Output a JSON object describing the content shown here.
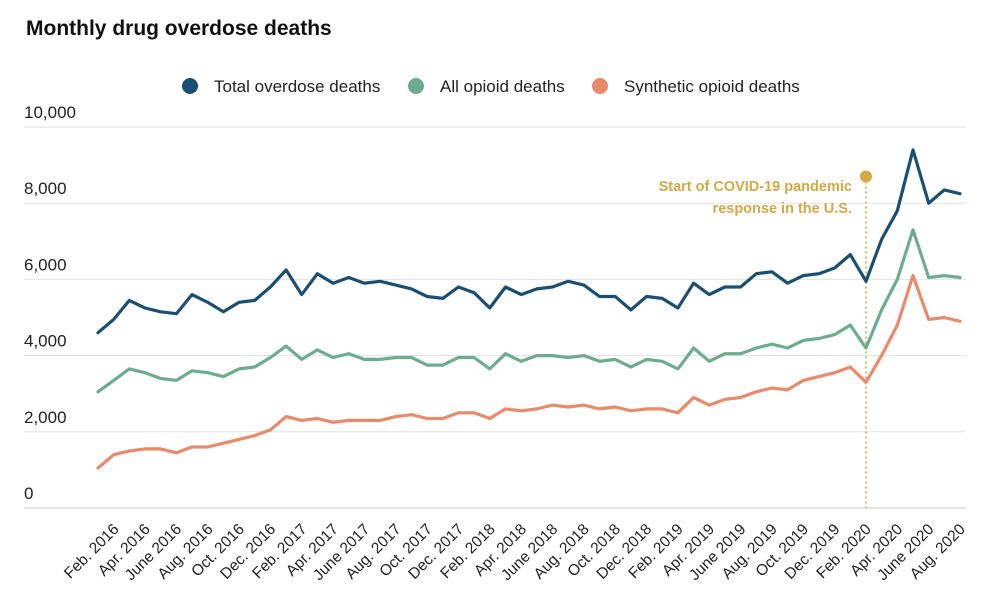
{
  "chart_data": {
    "type": "line",
    "title": "Monthly drug overdose deaths",
    "xlabel": "",
    "ylabel": "",
    "ylim": [
      0,
      10000
    ],
    "yticks": [
      0,
      2000,
      4000,
      6000,
      8000,
      10000
    ],
    "ytick_labels": [
      "0",
      "2,000",
      "4,000",
      "6,000",
      "8,000",
      "10,000"
    ],
    "grid": true,
    "legend_position": "top-center",
    "x": [
      "Jan. 2016",
      "Feb. 2016",
      "Mar. 2016",
      "Apr. 2016",
      "May 2016",
      "June 2016",
      "July 2016",
      "Aug. 2016",
      "Sep. 2016",
      "Oct. 2016",
      "Nov. 2016",
      "Dec. 2016",
      "Jan. 2017",
      "Feb. 2017",
      "Mar. 2017",
      "Apr. 2017",
      "May 2017",
      "June 2017",
      "July 2017",
      "Aug. 2017",
      "Sep. 2017",
      "Oct. 2017",
      "Nov. 2017",
      "Dec. 2017",
      "Jan. 2018",
      "Feb. 2018",
      "Mar. 2018",
      "Apr. 2018",
      "May 2018",
      "June 2018",
      "July 2018",
      "Aug. 2018",
      "Sep. 2018",
      "Oct. 2018",
      "Nov. 2018",
      "Dec. 2018",
      "Jan. 2019",
      "Feb. 2019",
      "Mar. 2019",
      "Apr. 2019",
      "May 2019",
      "June 2019",
      "July 2019",
      "Aug. 2019",
      "Sep. 2019",
      "Oct. 2019",
      "Nov. 2019",
      "Dec. 2019",
      "Jan. 2020",
      "Feb. 2020",
      "Mar. 2020",
      "Apr. 2020",
      "May 2020",
      "June 2020",
      "July 2020",
      "Aug. 2020"
    ],
    "tick_labels": [
      {
        "index": 1,
        "label": "Feb. 2016"
      },
      {
        "index": 3,
        "label": "Apr. 2016"
      },
      {
        "index": 5,
        "label": "June 2016"
      },
      {
        "index": 7,
        "label": "Aug. 2016"
      },
      {
        "index": 9,
        "label": "Oct. 2016"
      },
      {
        "index": 11,
        "label": "Dec. 2016"
      },
      {
        "index": 13,
        "label": "Feb. 2017"
      },
      {
        "index": 15,
        "label": "Apr. 2017"
      },
      {
        "index": 17,
        "label": "June 2017"
      },
      {
        "index": 19,
        "label": "Aug. 2017"
      },
      {
        "index": 21,
        "label": "Oct. 2017"
      },
      {
        "index": 23,
        "label": "Dec. 2017"
      },
      {
        "index": 25,
        "label": "Feb. 2018"
      },
      {
        "index": 27,
        "label": "Apr. 2018"
      },
      {
        "index": 29,
        "label": "June 2018"
      },
      {
        "index": 31,
        "label": "Aug. 2018"
      },
      {
        "index": 33,
        "label": "Oct. 2018"
      },
      {
        "index": 35,
        "label": "Dec. 2018"
      },
      {
        "index": 37,
        "label": "Feb. 2019"
      },
      {
        "index": 39,
        "label": "Apr. 2019"
      },
      {
        "index": 41,
        "label": "June 2019"
      },
      {
        "index": 43,
        "label": "Aug. 2019"
      },
      {
        "index": 45,
        "label": "Oct. 2019"
      },
      {
        "index": 47,
        "label": "Dec. 2019"
      },
      {
        "index": 49,
        "label": "Feb. 2020"
      },
      {
        "index": 51,
        "label": "Apr. 2020"
      },
      {
        "index": 53,
        "label": "June 2020"
      },
      {
        "index": 55,
        "label": "Aug. 2020"
      }
    ],
    "series": [
      {
        "name": "Total overdose deaths",
        "color": "#1b4f72",
        "values": [
          4600,
          4950,
          5450,
          5250,
          5150,
          5100,
          5600,
          5400,
          5150,
          5400,
          5450,
          5800,
          6250,
          5600,
          6150,
          5900,
          6050,
          5900,
          5950,
          5850,
          5750,
          5550,
          5500,
          5800,
          5650,
          5250,
          5800,
          5600,
          5750,
          5800,
          5950,
          5850,
          5550,
          5550,
          5200,
          5550,
          5500,
          5250,
          5900,
          5600,
          5800,
          5800,
          6150,
          6200,
          5900,
          6100,
          6150,
          6300,
          6650,
          5950,
          7050,
          7800,
          9400,
          8000,
          8350,
          8250
        ]
      },
      {
        "name": "All opioid deaths",
        "color": "#6dad8f",
        "values": [
          3050,
          3350,
          3650,
          3550,
          3400,
          3350,
          3600,
          3550,
          3450,
          3650,
          3700,
          3950,
          4250,
          3900,
          4150,
          3950,
          4050,
          3900,
          3900,
          3950,
          3950,
          3750,
          3750,
          3950,
          3950,
          3650,
          4050,
          3850,
          4000,
          4000,
          3950,
          4000,
          3850,
          3900,
          3700,
          3900,
          3850,
          3650,
          4200,
          3850,
          4050,
          4050,
          4200,
          4300,
          4200,
          4400,
          4450,
          4550,
          4800,
          4200,
          5200,
          6000,
          7300,
          6050,
          6100,
          6050
        ]
      },
      {
        "name": "Synthetic opioid deaths",
        "color": "#e98a6a",
        "values": [
          1050,
          1400,
          1500,
          1550,
          1550,
          1450,
          1600,
          1600,
          1700,
          1800,
          1900,
          2050,
          2400,
          2300,
          2350,
          2250,
          2300,
          2300,
          2300,
          2400,
          2450,
          2350,
          2350,
          2500,
          2500,
          2350,
          2600,
          2550,
          2600,
          2700,
          2650,
          2700,
          2600,
          2650,
          2550,
          2600,
          2600,
          2500,
          2900,
          2700,
          2850,
          2900,
          3050,
          3150,
          3100,
          3350,
          3450,
          3550,
          3700,
          3300,
          4000,
          4800,
          6100,
          4950,
          5000,
          4900
        ]
      }
    ],
    "annotation": {
      "line1": "Start of COVID-19 pandemic",
      "line2": "response in the U.S.",
      "index": 49,
      "value": 8700,
      "color": "#d4a943"
    }
  }
}
